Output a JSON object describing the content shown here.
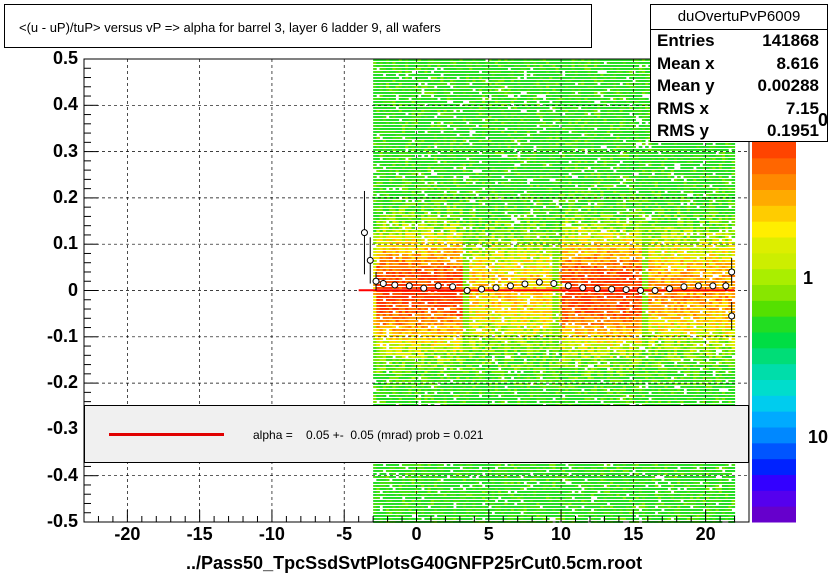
{
  "chart_data": {
    "type": "heatmap",
    "title": "<(u - uP)/tuP>  versus   vP => alpha for barrel 3, layer 6 ladder 9, all wafers",
    "xlim": [
      -23,
      23
    ],
    "ylim": [
      -0.5,
      0.5
    ],
    "x_ticks": [
      -20,
      -15,
      -10,
      -5,
      0,
      5,
      10,
      15,
      20
    ],
    "y_ticks": [
      0.5,
      0.4,
      0.3,
      0.2,
      0.1,
      0,
      -0.1,
      -0.2,
      -0.3,
      -0.4,
      -0.5
    ],
    "y_tick_labels": [
      "0.5",
      "0.4",
      "0.3",
      "0.2",
      "0.1",
      "0",
      "-0.1",
      "-0.2",
      "-0.3",
      "-0.4",
      "-0.5"
    ],
    "z_tick_labels": [
      "1",
      "10"
    ],
    "z_top_label": "0",
    "grid": true,
    "heatmap_x_range": [
      -3,
      22
    ],
    "profile_points": [
      {
        "x": -3.6,
        "y": 0.125,
        "err": 0.09
      },
      {
        "x": -3.2,
        "y": 0.065,
        "err": 0.05
      },
      {
        "x": -2.8,
        "y": 0.02,
        "err": 0.02
      },
      {
        "x": -2.3,
        "y": 0.015,
        "err": 0.008
      },
      {
        "x": -1.5,
        "y": 0.012,
        "err": 0.006
      },
      {
        "x": -0.5,
        "y": 0.01,
        "err": 0.005
      },
      {
        "x": 0.5,
        "y": 0.005,
        "err": 0.005
      },
      {
        "x": 1.5,
        "y": 0.01,
        "err": 0.005
      },
      {
        "x": 2.5,
        "y": 0.008,
        "err": 0.005
      },
      {
        "x": 3.5,
        "y": 0.0,
        "err": 0.006
      },
      {
        "x": 4.5,
        "y": 0.003,
        "err": 0.005
      },
      {
        "x": 5.5,
        "y": 0.006,
        "err": 0.005
      },
      {
        "x": 6.5,
        "y": 0.01,
        "err": 0.005
      },
      {
        "x": 7.5,
        "y": 0.014,
        "err": 0.005
      },
      {
        "x": 8.5,
        "y": 0.018,
        "err": 0.005
      },
      {
        "x": 9.5,
        "y": 0.015,
        "err": 0.005
      },
      {
        "x": 10.5,
        "y": 0.01,
        "err": 0.005
      },
      {
        "x": 11.5,
        "y": 0.006,
        "err": 0.005
      },
      {
        "x": 12.5,
        "y": 0.004,
        "err": 0.005
      },
      {
        "x": 13.5,
        "y": 0.003,
        "err": 0.005
      },
      {
        "x": 14.5,
        "y": 0.002,
        "err": 0.005
      },
      {
        "x": 15.5,
        "y": 0.0,
        "err": 0.005
      },
      {
        "x": 16.5,
        "y": 0.0,
        "err": 0.005
      },
      {
        "x": 17.5,
        "y": 0.004,
        "err": 0.005
      },
      {
        "x": 18.5,
        "y": 0.008,
        "err": 0.005
      },
      {
        "x": 19.5,
        "y": 0.01,
        "err": 0.005
      },
      {
        "x": 20.5,
        "y": 0.01,
        "err": 0.006
      },
      {
        "x": 21.4,
        "y": 0.01,
        "err": 0.01
      },
      {
        "x": 21.8,
        "y": 0.04,
        "err": 0.03
      },
      {
        "x": 21.8,
        "y": -0.055,
        "err": 0.03
      }
    ],
    "fit_line": {
      "x": [
        -4,
        22
      ],
      "y": [
        0.0005,
        0.0005
      ],
      "color": "#ff0000"
    }
  },
  "stats": {
    "name": "duOvertuPvP6009",
    "rows": [
      {
        "label": "Entries",
        "value": "141868"
      },
      {
        "label": "Mean x",
        "value": "8.616"
      },
      {
        "label": "Mean y",
        "value": "0.00288"
      },
      {
        "label": "RMS x",
        "value": "7.15"
      },
      {
        "label": "RMS y",
        "value": "0.1951"
      }
    ]
  },
  "fit_legend": {
    "text": "alpha =    0.05 +-  0.05 (mrad) prob = 0.021",
    "color": "#e00000"
  },
  "file_label": "../Pass50_TpcSsdSvtPlotsG40GNFP25rCut0.5cm.root"
}
